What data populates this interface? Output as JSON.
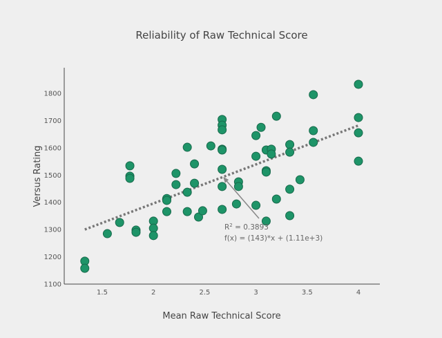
{
  "chart_data": {
    "type": "scatter",
    "title": "Reliability of Raw Technical Score",
    "xlabel": "Mean Raw Technical Score",
    "ylabel": "Versus Rating",
    "xlim": [
      1.13,
      4.2
    ],
    "ylim": [
      1100,
      1900
    ],
    "xticks": [
      "1.5",
      "2",
      "2.5",
      "3",
      "3.5",
      "4"
    ],
    "yticks": [
      "1100",
      "1200",
      "1300",
      "1400",
      "1500",
      "1600",
      "1700",
      "1800"
    ],
    "grid": false,
    "colors": {
      "point": "#1e9468",
      "point_edge": "#17694b",
      "trend": "#777777",
      "background": "#efefef"
    },
    "points": [
      [
        1.33,
        1184
      ],
      [
        1.33,
        1158
      ],
      [
        1.55,
        1285
      ],
      [
        1.67,
        1326
      ],
      [
        1.77,
        1534
      ],
      [
        1.77,
        1496
      ],
      [
        1.77,
        1488
      ],
      [
        1.83,
        1298
      ],
      [
        1.83,
        1290
      ],
      [
        2.0,
        1331
      ],
      [
        2.0,
        1305
      ],
      [
        2.0,
        1278
      ],
      [
        2.13,
        1414
      ],
      [
        2.13,
        1407
      ],
      [
        2.13,
        1366
      ],
      [
        2.22,
        1506
      ],
      [
        2.22,
        1465
      ],
      [
        2.33,
        1602
      ],
      [
        2.33,
        1437
      ],
      [
        2.33,
        1366
      ],
      [
        2.4,
        1541
      ],
      [
        2.4,
        1470
      ],
      [
        2.44,
        1346
      ],
      [
        2.48,
        1369
      ],
      [
        2.56,
        1607
      ],
      [
        2.67,
        1704
      ],
      [
        2.67,
        1683
      ],
      [
        2.67,
        1666
      ],
      [
        2.67,
        1595
      ],
      [
        2.67,
        1592
      ],
      [
        2.67,
        1521
      ],
      [
        2.67,
        1458
      ],
      [
        2.67,
        1374
      ],
      [
        2.81,
        1394
      ],
      [
        2.83,
        1475
      ],
      [
        2.83,
        1458
      ],
      [
        3.0,
        1645
      ],
      [
        3.0,
        1569
      ],
      [
        3.0,
        1389
      ],
      [
        3.05,
        1675
      ],
      [
        3.1,
        1592
      ],
      [
        3.1,
        1516
      ],
      [
        3.1,
        1511
      ],
      [
        3.1,
        1331
      ],
      [
        3.15,
        1595
      ],
      [
        3.15,
        1577
      ],
      [
        3.2,
        1716
      ],
      [
        3.2,
        1412
      ],
      [
        3.33,
        1612
      ],
      [
        3.33,
        1584
      ],
      [
        3.33,
        1448
      ],
      [
        3.33,
        1351
      ],
      [
        3.43,
        1483
      ],
      [
        3.56,
        1795
      ],
      [
        3.56,
        1663
      ],
      [
        3.56,
        1620
      ],
      [
        4.0,
        1833
      ],
      [
        4.0,
        1711
      ],
      [
        4.0,
        1655
      ],
      [
        4.0,
        1551
      ]
    ],
    "trendline": {
      "slope": 143,
      "intercept": 1110,
      "x_range": [
        1.33,
        4.0
      ],
      "style": "dotted"
    },
    "annotation": {
      "r2_label": "R",
      "r2_sup": "2",
      "r2_value": " = 0.3893",
      "formula": "f(x) = (143)*x + (1.11e+3)",
      "arrow_to": [
        2.68,
        1493
      ]
    }
  }
}
